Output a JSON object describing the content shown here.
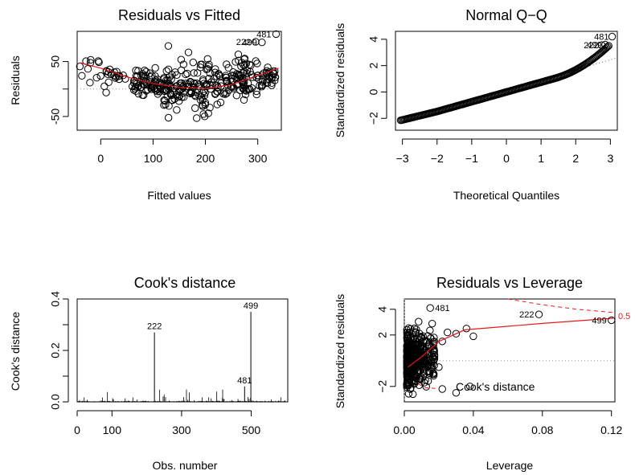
{
  "chart_data": [
    {
      "type": "scatter",
      "title": "Residuals vs Fitted",
      "xlabel": "Fitted values",
      "ylabel": "Residuals",
      "xlim": [
        -45,
        345
      ],
      "ylim": [
        -75,
        105
      ],
      "xticks": [
        0,
        100,
        200,
        300
      ],
      "yticks": [
        -50,
        0,
        50
      ],
      "yticks_shown": [
        -50,
        50
      ],
      "hline": 0,
      "smoother": [
        [
          -40,
          48
        ],
        [
          0,
          38
        ],
        [
          50,
          22
        ],
        [
          100,
          10
        ],
        [
          150,
          3
        ],
        [
          200,
          1
        ],
        [
          250,
          8
        ],
        [
          300,
          25
        ],
        [
          340,
          38
        ]
      ],
      "labeled_points": [
        {
          "label": "481",
          "x": 335,
          "y": 100
        },
        {
          "label": "499",
          "x": 308,
          "y": 85
        },
        {
          "label": "222",
          "x": 296,
          "y": 86
        }
      ],
      "cloud": {
        "x": [
          -40,
          340
        ],
        "center_curve": [
          [
            -40,
            40
          ],
          [
            100,
            8
          ],
          [
            200,
            0
          ],
          [
            340,
            30
          ]
        ]
      }
    },
    {
      "type": "scatter",
      "title": "Normal Q−Q",
      "xlabel": "Theoretical Quantiles",
      "ylabel": "Standardized residuals",
      "xlim": [
        -3.2,
        3.2
      ],
      "ylim": [
        -2.9,
        4.6
      ],
      "xticks": [
        -3,
        -2,
        -1,
        0,
        1,
        2,
        3
      ],
      "yticks": [
        -2,
        0,
        2,
        4
      ],
      "reference_line": [
        [
          -3.2,
          -2.35
        ],
        [
          3.2,
          2.6
        ]
      ],
      "labeled_points": [
        {
          "label": "481",
          "x": 3.05,
          "y": 4.2
        },
        {
          "label": "499",
          "x": 2.85,
          "y": 3.6
        },
        {
          "label": "222",
          "x": 2.75,
          "y": 3.55
        }
      ]
    },
    {
      "type": "bar",
      "title": "Cook's distance",
      "xlabel": "Obs. number",
      "ylabel": "Cook's distance",
      "xlim": [
        0,
        605
      ],
      "ylim": [
        0,
        0.4
      ],
      "xticks": [
        0,
        100,
        300,
        500
      ],
      "yticks": [
        0.0,
        0.1,
        0.2,
        0.3,
        0.4
      ],
      "ytick_labels": [
        "0.0",
        "0.2",
        "0.4"
      ],
      "spikes": [
        {
          "label": "222",
          "x": 222,
          "y": 0.27
        },
        {
          "label": "499",
          "x": 499,
          "y": 0.35
        },
        {
          "label": "481",
          "x": 481,
          "y": 0.06
        }
      ]
    },
    {
      "type": "scatter",
      "title": "Residuals vs Leverage",
      "xlabel": "Leverage",
      "ylabel": "Standardized residuals",
      "xlim": [
        0,
        0.122
      ],
      "ylim": [
        -3.2,
        4.8
      ],
      "xticks": [
        0.0,
        0.04,
        0.08,
        0.12
      ],
      "xtick_labels": [
        "0.00",
        "0.04",
        "0.08",
        "0.12"
      ],
      "yticks": [
        -2,
        2,
        4
      ],
      "smoother": [
        [
          0.002,
          -0.5
        ],
        [
          0.01,
          0.3
        ],
        [
          0.02,
          1.5
        ],
        [
          0.035,
          2.4
        ],
        [
          0.08,
          2.9
        ],
        [
          0.121,
          3.3
        ]
      ],
      "labeled_points": [
        {
          "label": "481",
          "x": 0.015,
          "y": 4.1
        },
        {
          "label": "222",
          "x": 0.078,
          "y": 3.6
        },
        {
          "label": "499",
          "x": 0.12,
          "y": 3.15
        }
      ],
      "cook_label": "Cook's distance",
      "cook_level": "0.5"
    }
  ]
}
